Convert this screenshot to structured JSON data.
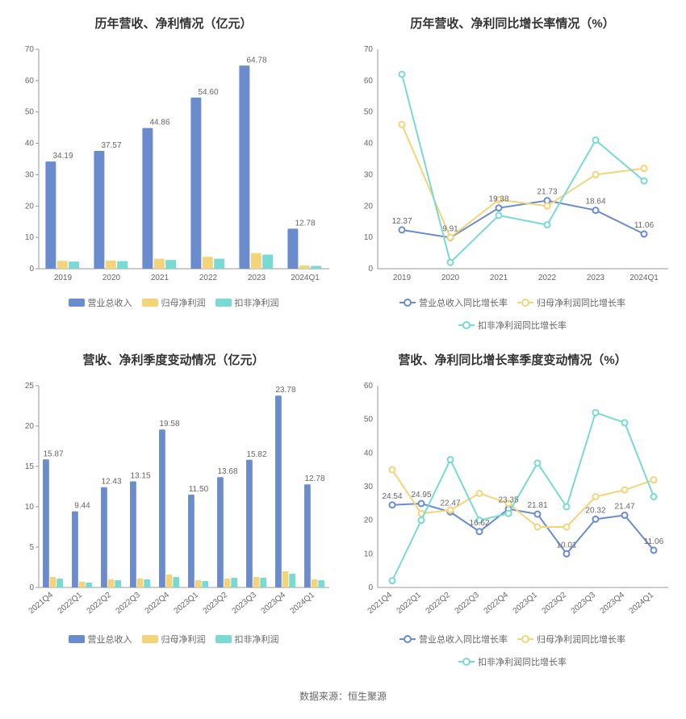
{
  "colors": {
    "blue": "#6a8cce",
    "yellow": "#f3d479",
    "teal": "#79d9d3",
    "axis": "#999999",
    "grid": "#e0e0e0",
    "text": "#666666",
    "title": "#333333",
    "bg": "#ffffff"
  },
  "footer": "数据来源：恒生聚源",
  "chart1": {
    "title": "历年营收、净利情况（亿元）",
    "type": "bar",
    "categories": [
      "2019",
      "2020",
      "2021",
      "2022",
      "2023",
      "2024Q1"
    ],
    "series": [
      {
        "name": "营业总收入",
        "color": "#6a8cce",
        "values": [
          34.19,
          37.57,
          44.86,
          54.6,
          64.78,
          12.78
        ]
      },
      {
        "name": "归母净利润",
        "color": "#f3d479",
        "values": [
          2.5,
          2.6,
          3.2,
          3.8,
          5.0,
          1.0
        ]
      },
      {
        "name": "扣非净利润",
        "color": "#79d9d3",
        "values": [
          2.3,
          2.4,
          2.8,
          3.2,
          4.5,
          0.9
        ]
      }
    ],
    "ylim": [
      0,
      70
    ],
    "ytick_step": 10,
    "labels": [
      "34.19",
      "37.57",
      "44.86",
      "54.60",
      "64.78",
      "12.78"
    ]
  },
  "chart2": {
    "title": "历年营收、净利同比增长率情况（%）",
    "type": "line",
    "categories": [
      "2019",
      "2020",
      "2021",
      "2022",
      "2023",
      "2024Q1"
    ],
    "series": [
      {
        "name": "营业总收入同比增长率",
        "color": "#6a8cce",
        "values": [
          12.37,
          9.91,
          19.38,
          21.73,
          18.64,
          11.06
        ]
      },
      {
        "name": "归母净利润同比增长率",
        "color": "#f3d479",
        "values": [
          46,
          10,
          22,
          20,
          30,
          32
        ]
      },
      {
        "name": "扣非净利润同比增长率",
        "color": "#79d9d3",
        "values": [
          62,
          2,
          17,
          14,
          41,
          28
        ]
      }
    ],
    "ylim": [
      0,
      70
    ],
    "ytick_step": 10,
    "labels": [
      "12.37",
      "9.91",
      "19.38",
      "21.73",
      "18.64",
      "11.06"
    ]
  },
  "chart3": {
    "title": "营收、净利季度变动情况（亿元）",
    "type": "bar",
    "categories": [
      "2021Q4",
      "2022Q1",
      "2022Q2",
      "2022Q3",
      "2022Q4",
      "2023Q1",
      "2023Q2",
      "2023Q3",
      "2023Q4",
      "2024Q1"
    ],
    "series": [
      {
        "name": "营业总收入",
        "color": "#6a8cce",
        "values": [
          15.87,
          9.44,
          12.43,
          13.15,
          19.58,
          11.5,
          13.68,
          15.82,
          23.78,
          12.78
        ]
      },
      {
        "name": "归母净利润",
        "color": "#f3d479",
        "values": [
          1.3,
          0.7,
          1.0,
          1.1,
          1.6,
          0.9,
          1.1,
          1.3,
          2.0,
          1.0
        ]
      },
      {
        "name": "扣非净利润",
        "color": "#79d9d3",
        "values": [
          1.1,
          0.6,
          0.9,
          1.0,
          1.3,
          0.8,
          1.2,
          1.2,
          1.7,
          0.9
        ]
      }
    ],
    "ylim": [
      0,
      25
    ],
    "ytick_step": 5,
    "labels": [
      "15.87",
      "9.44",
      "12.43",
      "13.15",
      "19.58",
      "11.50",
      "13.68",
      "15.82",
      "23.78",
      "12.78"
    ]
  },
  "chart4": {
    "title": "营收、净利同比增长率季度变动情况（%）",
    "type": "line",
    "categories": [
      "2021Q4",
      "2022Q1",
      "2022Q2",
      "2022Q3",
      "2022Q4",
      "2023Q1",
      "2023Q2",
      "2023Q3",
      "2023Q4",
      "2024Q1"
    ],
    "series": [
      {
        "name": "营业总收入同比增长率",
        "color": "#6a8cce",
        "values": [
          24.54,
          24.95,
          22.47,
          16.62,
          23.35,
          21.81,
          10.01,
          20.32,
          21.47,
          11.06
        ]
      },
      {
        "name": "归母净利润同比增长率",
        "color": "#f3d479",
        "values": [
          35,
          22,
          23,
          28,
          25,
          18,
          18,
          27,
          29,
          32
        ]
      },
      {
        "name": "扣非净利润同比增长率",
        "color": "#79d9d3",
        "values": [
          2,
          20,
          38,
          20,
          22,
          37,
          24,
          52,
          49,
          27
        ]
      }
    ],
    "ylim": [
      0,
      60
    ],
    "ytick_step": 10,
    "labels": [
      "24.54",
      "24.95",
      "22.47",
      "16.62",
      "23.35",
      "21.81",
      "10.01",
      "20.32",
      "21.47",
      "11.06"
    ]
  }
}
